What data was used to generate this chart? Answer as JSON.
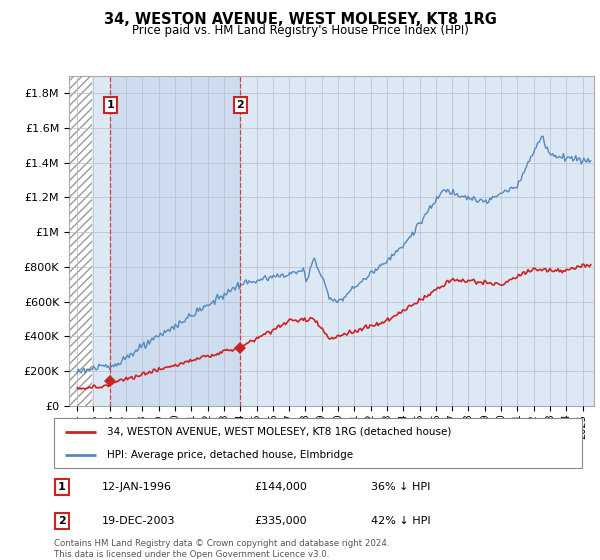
{
  "title": "34, WESTON AVENUE, WEST MOLESEY, KT8 1RG",
  "subtitle": "Price paid vs. HM Land Registry's House Price Index (HPI)",
  "hpi_color": "#5588bb",
  "price_color": "#cc2222",
  "background_color": "#dde8f5",
  "hatch_color": "#bbbbbb",
  "grid_color": "#aaaaaa",
  "sale1_date_num": 1996.04,
  "sale1_price": 144000,
  "sale2_date_num": 2004.0,
  "sale2_price": 335000,
  "ylim_max": 1900000,
  "xlim_min": 1993.5,
  "xlim_max": 2025.7,
  "legend_line1": "34, WESTON AVENUE, WEST MOLESEY, KT8 1RG (detached house)",
  "legend_line2": "HPI: Average price, detached house, Elmbridge",
  "annotation1_label": "1",
  "annotation1_date": "12-JAN-1996",
  "annotation1_price": "£144,000",
  "annotation1_hpi": "36% ↓ HPI",
  "annotation2_label": "2",
  "annotation2_date": "19-DEC-2003",
  "annotation2_price": "£335,000",
  "annotation2_hpi": "42% ↓ HPI",
  "footer": "Contains HM Land Registry data © Crown copyright and database right 2024.\nThis data is licensed under the Open Government Licence v3.0."
}
